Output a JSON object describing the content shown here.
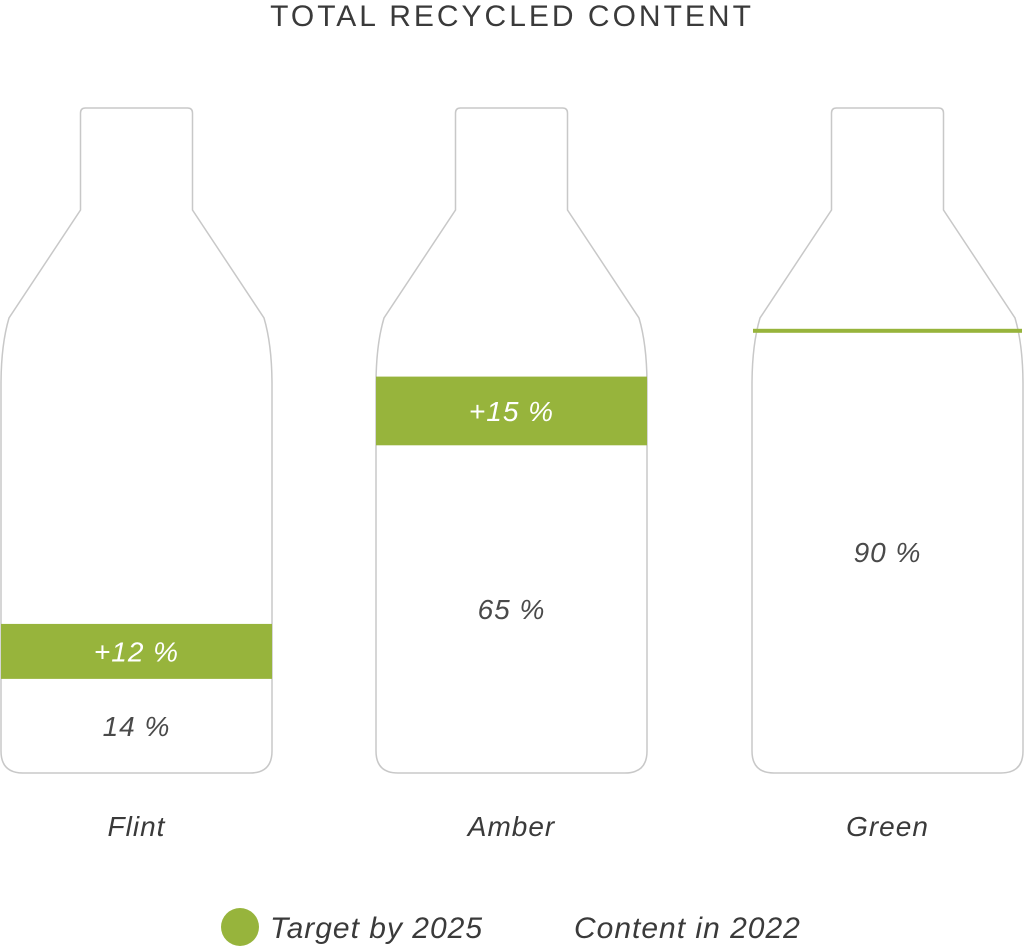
{
  "chart_data": {
    "type": "bar",
    "title": "TOTAL RECYCLED CONTENT",
    "categories": [
      "Flint",
      "Amber",
      "Green"
    ],
    "series": [
      {
        "name": "Content in 2022",
        "values": [
          14,
          65,
          90
        ],
        "labels": [
          "14 %",
          "65 %",
          "90 %"
        ]
      },
      {
        "name": "Target by 2025",
        "values": [
          12,
          15,
          0
        ],
        "labels": [
          "+12 %",
          "+15 %",
          ""
        ]
      }
    ],
    "ylim": [
      0,
      100
    ],
    "legend_position": "bottom",
    "colors": {
      "target": "#97b43c",
      "content": "#ffffff",
      "outline": "#c8c8c8",
      "text": "#3a3a3a"
    }
  }
}
